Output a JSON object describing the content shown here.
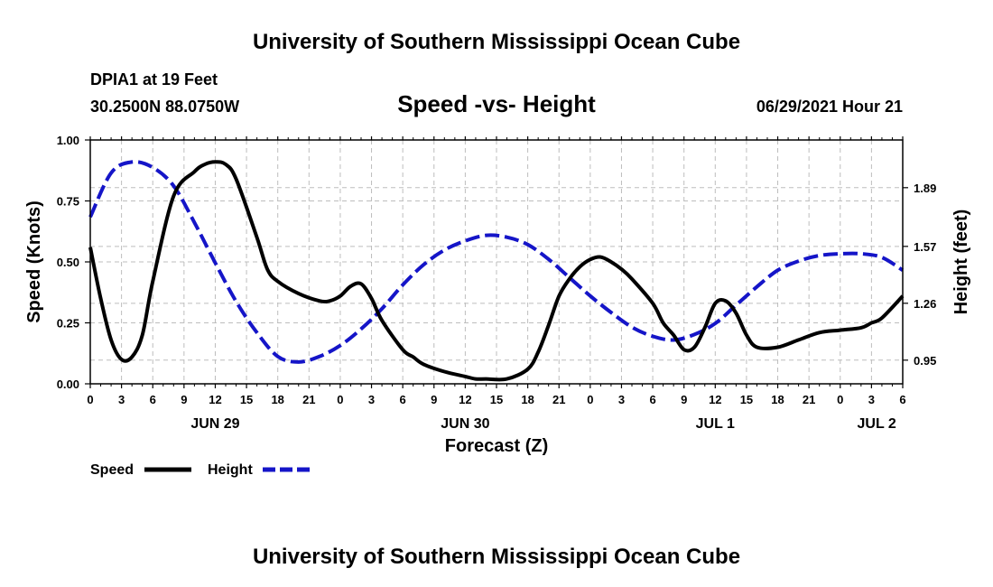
{
  "page": {
    "header_title": "University of Southern Mississippi Ocean Cube",
    "footer_title": "University of Southern Mississippi Ocean Cube",
    "station_name": "DPIA1 at 19 Feet",
    "station_coords": "30.2500N  88.0750W",
    "plot_title": "Speed -vs- Height",
    "run_time": "06/29/2021 Hour 21"
  },
  "colors": {
    "speed": "#000000",
    "height": "#1515c8",
    "grid": "#bdbdbd"
  },
  "chart_data": {
    "type": "line",
    "title": "Speed -vs- Height",
    "xlabel": "Forecast (Z)",
    "ylabel": "Speed (Knots)",
    "y2label": "Height (feet)",
    "xlim": [
      0,
      78
    ],
    "ylim": [
      0,
      1.0
    ],
    "y2lim": [
      0.8211,
      2.1499
    ],
    "grid": true,
    "x_ticks": [
      0,
      3,
      6,
      9,
      12,
      15,
      18,
      21,
      24,
      27,
      30,
      33,
      36,
      39,
      42,
      45,
      48,
      51,
      54,
      57,
      60,
      63,
      66,
      69,
      72,
      75,
      78
    ],
    "x_tick_labels": [
      "0",
      "3",
      "6",
      "9",
      "12",
      "15",
      "18",
      "21",
      "0",
      "3",
      "6",
      "9",
      "12",
      "15",
      "18",
      "21",
      "0",
      "3",
      "6",
      "9",
      "12",
      "15",
      "18",
      "21",
      "0",
      "3",
      "6"
    ],
    "y_ticks": [
      0.0,
      0.25,
      0.5,
      0.75,
      1.0
    ],
    "y_tick_labels": [
      "0.00",
      "0.25",
      "0.50",
      "0.75",
      "1.00"
    ],
    "y2_ticks": [
      0.95,
      1.26,
      1.57,
      1.89
    ],
    "y2_tick_labels": [
      "0.95",
      "1.26",
      "1.57",
      "1.89"
    ],
    "day_labels": [
      {
        "label": "JUN 29",
        "x": 12
      },
      {
        "label": "JUN 30",
        "x": 36
      },
      {
        "label": "JUL 1",
        "x": 60
      },
      {
        "label": "JUL 2",
        "x": 75.5
      }
    ],
    "series": [
      {
        "name": "Speed",
        "axis": "left",
        "style": "solid",
        "x": [
          0,
          1,
          2,
          3,
          4,
          5,
          6,
          8,
          10,
          11,
          12,
          13,
          14,
          16,
          17,
          18,
          20,
          22,
          23,
          24,
          25,
          26,
          27,
          28,
          30,
          31,
          32,
          34,
          36,
          37,
          38,
          40,
          42,
          43,
          44,
          45,
          46,
          47,
          48,
          49,
          50,
          51,
          52,
          54,
          55,
          56,
          57,
          58,
          59,
          60,
          61,
          62,
          63,
          64,
          66,
          68,
          70,
          72,
          74,
          75,
          76,
          78
        ],
        "values": [
          0.56,
          0.35,
          0.18,
          0.1,
          0.11,
          0.2,
          0.42,
          0.77,
          0.87,
          0.9,
          0.91,
          0.9,
          0.84,
          0.6,
          0.47,
          0.42,
          0.37,
          0.34,
          0.34,
          0.36,
          0.4,
          0.41,
          0.35,
          0.26,
          0.14,
          0.11,
          0.08,
          0.05,
          0.03,
          0.02,
          0.02,
          0.02,
          0.06,
          0.13,
          0.24,
          0.36,
          0.43,
          0.48,
          0.51,
          0.52,
          0.5,
          0.47,
          0.43,
          0.33,
          0.25,
          0.2,
          0.14,
          0.15,
          0.23,
          0.33,
          0.34,
          0.29,
          0.2,
          0.15,
          0.15,
          0.18,
          0.21,
          0.22,
          0.23,
          0.25,
          0.27,
          0.36
        ]
      },
      {
        "name": "Height",
        "axis": "right",
        "style": "dashed",
        "x": [
          0,
          2,
          4,
          6,
          8,
          10,
          12,
          14,
          16,
          18,
          20,
          22,
          24,
          26,
          28,
          30,
          32,
          34,
          36,
          38,
          40,
          42,
          44,
          46,
          48,
          50,
          52,
          54,
          56,
          58,
          60,
          62,
          64,
          66,
          68,
          70,
          72,
          74,
          76,
          78
        ],
        "values": [
          1.73,
          1.97,
          2.03,
          2.0,
          1.9,
          1.7,
          1.48,
          1.27,
          1.1,
          0.97,
          0.94,
          0.97,
          1.03,
          1.12,
          1.23,
          1.36,
          1.47,
          1.55,
          1.6,
          1.63,
          1.62,
          1.58,
          1.5,
          1.4,
          1.3,
          1.21,
          1.13,
          1.08,
          1.06,
          1.09,
          1.15,
          1.25,
          1.35,
          1.44,
          1.49,
          1.52,
          1.53,
          1.53,
          1.51,
          1.44
        ]
      }
    ],
    "legend": {
      "placement": "bottom-left",
      "entries": [
        "Speed",
        "Height"
      ]
    }
  }
}
